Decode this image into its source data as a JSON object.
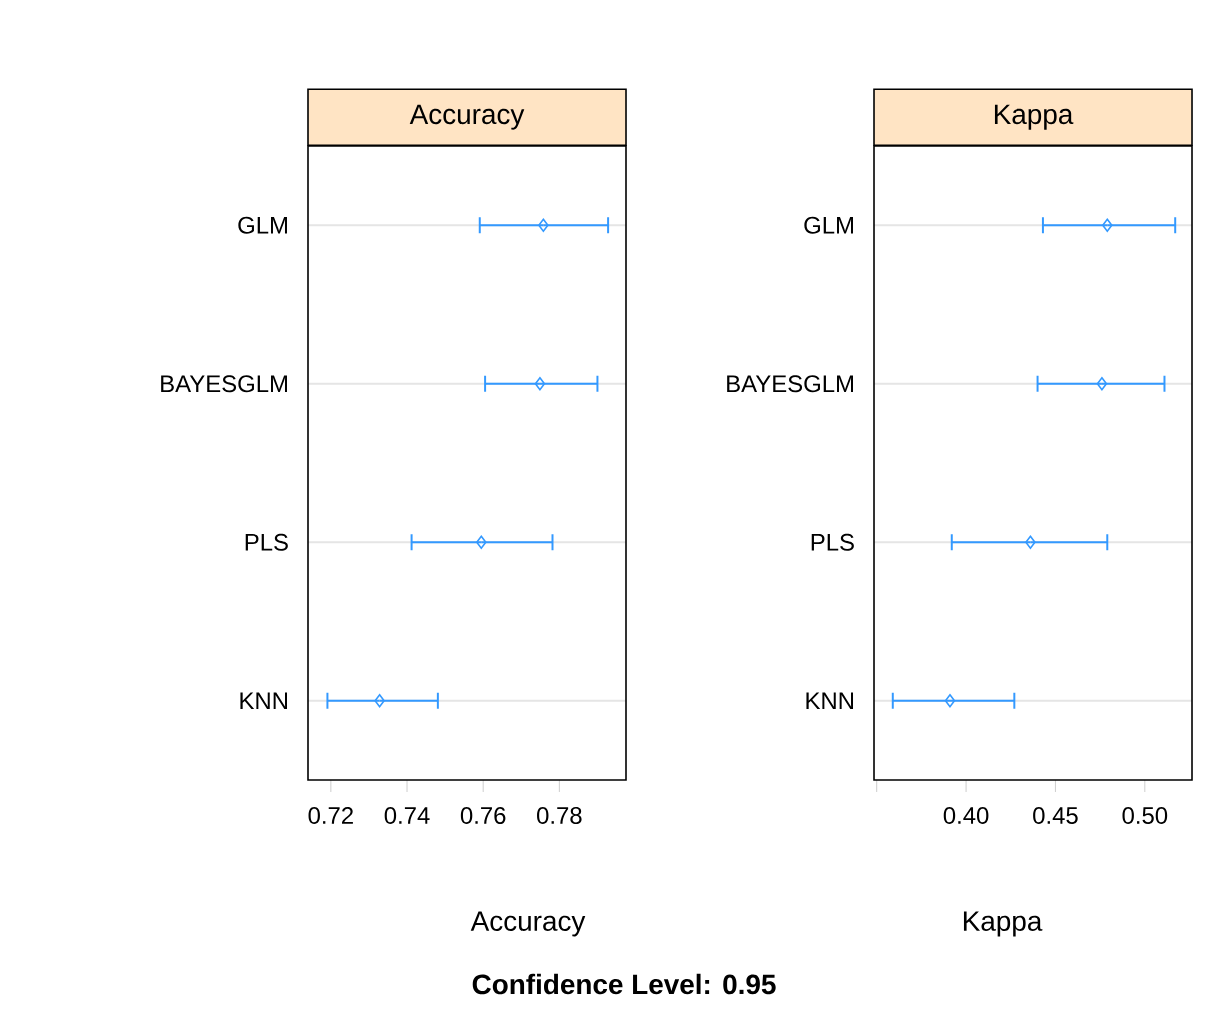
{
  "chart_data": [
    {
      "type": "scatter",
      "orientation": "horizontal",
      "title": "Accuracy",
      "xlabel": "Accuracy",
      "categories": [
        "GLM",
        "BAYESGLM",
        "PLS",
        "KNN"
      ],
      "series": [
        {
          "color": "#3399ff",
          "values": [
            0.7758,
            0.7749,
            0.7595,
            0.7328
          ],
          "errors": [
            [
              0.7591,
              0.7928
            ],
            [
              0.7605,
              0.79
            ],
            [
              0.7412,
              0.7782
            ],
            [
              0.7191,
              0.7481
            ]
          ]
        }
      ],
      "xlim": [
        0.714,
        0.7975
      ],
      "xticks": [
        0.72,
        0.74,
        0.76,
        0.78
      ],
      "grid": "y",
      "marker": "diamond"
    },
    {
      "type": "scatter",
      "orientation": "horizontal",
      "title": "Kappa",
      "xlabel": "Kappa",
      "categories": [
        "GLM",
        "BAYESGLM",
        "PLS",
        "KNN"
      ],
      "series": [
        {
          "color": "#3399ff",
          "values": [
            0.479,
            0.476,
            0.436,
            0.391
          ],
          "errors": [
            [
              0.443,
              0.517
            ],
            [
              0.44,
              0.511
            ],
            [
              0.392,
              0.479
            ],
            [
              0.359,
              0.427
            ]
          ]
        }
      ],
      "xlim": [
        0.3485,
        0.5264
      ],
      "xticks": [
        {
          "value": 0.35,
          "label": null
        },
        {
          "value": 0.4,
          "label": "0.40"
        },
        0.45,
        {
          "value": 0.5,
          "label": "0.50"
        }
      ],
      "grid": "y",
      "marker": "diamond",
      "annotations": [
        "Confidence Level: 0.95"
      ]
    }
  ]
}
